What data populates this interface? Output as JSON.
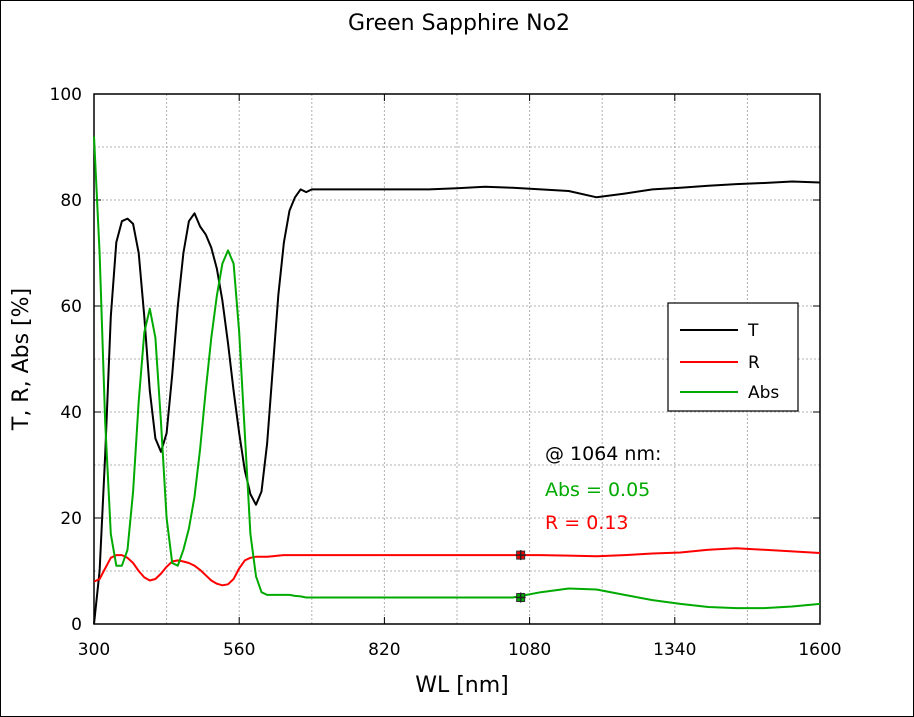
{
  "chart_data": {
    "type": "line",
    "title": "Green Sapphire No2",
    "xlabel": "WL [nm]",
    "ylabel": "T, R, Abs [%]",
    "xlim": [
      300,
      1600
    ],
    "ylim": [
      0,
      100
    ],
    "xticks": [
      300,
      560,
      820,
      1080,
      1340,
      1600
    ],
    "yticks": [
      0,
      20,
      40,
      60,
      80,
      100
    ],
    "grid": true,
    "legend": {
      "placement": "right-center",
      "entries": [
        "T",
        "R",
        "Abs"
      ]
    },
    "series": [
      {
        "name": "T",
        "color": "#000000",
        "x": [
          300,
          310,
          320,
          330,
          340,
          350,
          360,
          370,
          380,
          390,
          400,
          410,
          420,
          430,
          440,
          450,
          460,
          470,
          480,
          490,
          500,
          510,
          520,
          530,
          540,
          550,
          560,
          570,
          580,
          590,
          600,
          610,
          620,
          630,
          640,
          650,
          660,
          670,
          680,
          690,
          700,
          710,
          720,
          730,
          740,
          750,
          760,
          770,
          780,
          790,
          800,
          850,
          900,
          950,
          1000,
          1050,
          1100,
          1150,
          1200,
          1250,
          1300,
          1350,
          1400,
          1450,
          1500,
          1550,
          1600
        ],
        "y": [
          0,
          10,
          32,
          58,
          72,
          76,
          76.5,
          75.5,
          70,
          58,
          44,
          35,
          32.5,
          36,
          47,
          60,
          70,
          76,
          77.5,
          75,
          73.5,
          71,
          67,
          61,
          53,
          44,
          36,
          29,
          24.5,
          22.5,
          25,
          34,
          48,
          62,
          72,
          78,
          80.5,
          82,
          81.5,
          82,
          82,
          82,
          82,
          82,
          82,
          82,
          82,
          82,
          82,
          82,
          82,
          82,
          82,
          82.2,
          82.5,
          82.3,
          82,
          81.7,
          80.5,
          81.2,
          82,
          82.3,
          82.7,
          83,
          83.2,
          83.5,
          83.3
        ]
      },
      {
        "name": "R",
        "color": "#ff0000",
        "x": [
          300,
          310,
          320,
          330,
          340,
          350,
          360,
          370,
          380,
          390,
          400,
          410,
          420,
          430,
          440,
          450,
          460,
          470,
          480,
          490,
          500,
          510,
          520,
          530,
          540,
          550,
          560,
          570,
          580,
          590,
          600,
          610,
          620,
          630,
          640,
          650,
          660,
          670,
          680,
          690,
          700,
          710,
          720,
          730,
          740,
          750,
          760,
          770,
          780,
          790,
          800,
          850,
          900,
          950,
          1000,
          1050,
          1100,
          1150,
          1200,
          1250,
          1300,
          1350,
          1400,
          1450,
          1500,
          1550,
          1600
        ],
        "y": [
          8,
          8.5,
          10.5,
          12.5,
          13,
          13,
          12.5,
          11.5,
          10,
          8.8,
          8.2,
          8.5,
          9.5,
          10.8,
          11.8,
          12,
          11.8,
          11.5,
          11,
          10.2,
          9.2,
          8.2,
          7.6,
          7.3,
          7.5,
          8.5,
          10.5,
          12,
          12.5,
          12.7,
          12.7,
          12.7,
          12.8,
          12.9,
          13,
          13,
          13,
          13,
          13,
          13,
          13,
          13,
          13,
          13,
          13,
          13,
          13,
          13,
          13,
          13,
          13,
          13,
          13,
          13,
          13,
          13,
          13,
          12.9,
          12.8,
          13,
          13.3,
          13.5,
          14,
          14.3,
          14,
          13.7,
          13.4
        ]
      },
      {
        "name": "Abs",
        "color": "#00aa00",
        "x": [
          300,
          310,
          320,
          330,
          340,
          350,
          360,
          370,
          380,
          390,
          400,
          410,
          420,
          430,
          440,
          450,
          460,
          470,
          480,
          490,
          500,
          510,
          520,
          530,
          540,
          550,
          560,
          570,
          580,
          590,
          600,
          610,
          620,
          630,
          640,
          650,
          660,
          670,
          680,
          690,
          700,
          710,
          720,
          730,
          740,
          750,
          760,
          770,
          780,
          790,
          800,
          850,
          900,
          950,
          1000,
          1050,
          1100,
          1150,
          1200,
          1250,
          1300,
          1350,
          1400,
          1450,
          1500,
          1550,
          1600
        ],
        "y": [
          92,
          70,
          38,
          17,
          11,
          11,
          14,
          25,
          42,
          55,
          59.5,
          54,
          38,
          20,
          11.5,
          11,
          14,
          18,
          24,
          33,
          44,
          54,
          62,
          68,
          70.5,
          68,
          55,
          36,
          17,
          9,
          6,
          5.5,
          5.5,
          5.5,
          5.5,
          5.5,
          5.3,
          5.2,
          5,
          5,
          5,
          5,
          5,
          5,
          5,
          5,
          5,
          5,
          5,
          5,
          5,
          5,
          5,
          5,
          5,
          5,
          6,
          6.7,
          6.5,
          5.5,
          4.5,
          3.8,
          3.2,
          3,
          3,
          3.3,
          3.8
        ]
      }
    ],
    "markers": [
      {
        "series": "R",
        "x": 1064,
        "y": 13
      },
      {
        "series": "Abs",
        "x": 1064,
        "y": 5
      }
    ],
    "annotations": [
      {
        "text": "@ 1064 nm:",
        "color": "#000000"
      },
      {
        "text": "Abs = 0.05",
        "color": "#00aa00"
      },
      {
        "text": "R = 0.13",
        "color": "#ff0000"
      }
    ]
  }
}
